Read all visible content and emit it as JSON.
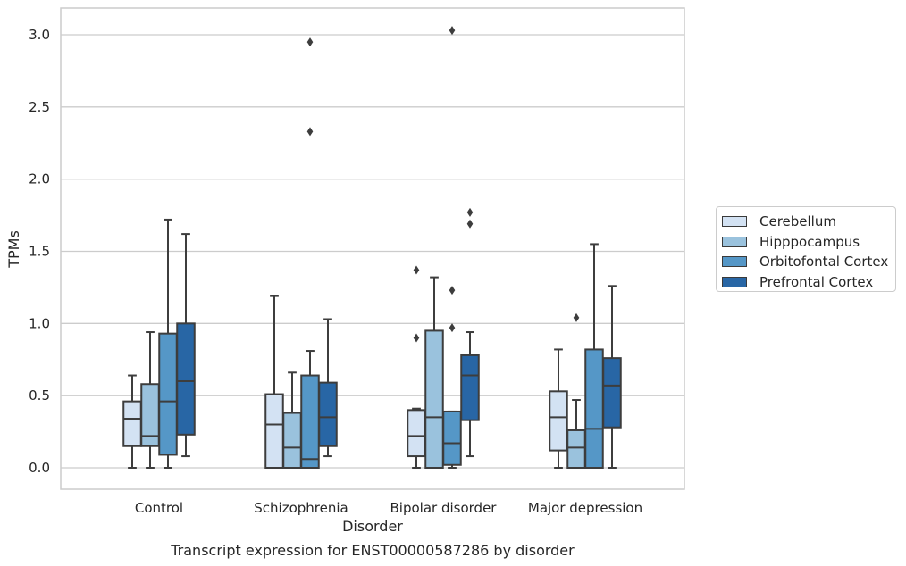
{
  "chart_data": {
    "type": "box",
    "caption": "Transcript expression for ENST00000587286 by disorder",
    "xlabel": "Disorder",
    "ylabel": "TPMs",
    "ylim": [
      -0.15,
      3.2
    ],
    "yticks": [
      "0.0",
      "0.5",
      "1.0",
      "1.5",
      "2.0",
      "2.5",
      "3.0"
    ],
    "grid": "horizontal",
    "legend_position": "right",
    "categories": [
      "Control",
      "Schizophrenia",
      "Bipolar disorder",
      "Major depression"
    ],
    "series": [
      {
        "name": "Cerebellum",
        "color": "#d3e2f3",
        "boxes": [
          {
            "whislo": 0.0,
            "q1": 0.15,
            "med": 0.34,
            "q3": 0.46,
            "whishi": 0.64,
            "fliers": []
          },
          {
            "whislo": 0.0,
            "q1": 0.0,
            "med": 0.3,
            "q3": 0.51,
            "whishi": 1.19,
            "fliers": []
          },
          {
            "whislo": 0.0,
            "q1": 0.08,
            "med": 0.22,
            "q3": 0.4,
            "whishi": 0.41,
            "fliers": [
              0.9,
              1.37
            ]
          },
          {
            "whislo": 0.0,
            "q1": 0.12,
            "med": 0.35,
            "q3": 0.53,
            "whishi": 0.82,
            "fliers": []
          }
        ]
      },
      {
        "name": "Hipppocampus",
        "color": "#9ac2dd",
        "boxes": [
          {
            "whislo": 0.0,
            "q1": 0.15,
            "med": 0.22,
            "q3": 0.58,
            "whishi": 0.94,
            "fliers": []
          },
          {
            "whislo": 0.0,
            "q1": 0.0,
            "med": 0.14,
            "q3": 0.38,
            "whishi": 0.66,
            "fliers": []
          },
          {
            "whislo": 0.0,
            "q1": 0.0,
            "med": 0.35,
            "q3": 0.95,
            "whishi": 1.32,
            "fliers": []
          },
          {
            "whislo": 0.0,
            "q1": 0.0,
            "med": 0.14,
            "q3": 0.26,
            "whishi": 0.47,
            "fliers": [
              1.04
            ]
          }
        ]
      },
      {
        "name": "Orbitofontal Cortex",
        "color": "#5597c7",
        "boxes": [
          {
            "whislo": 0.0,
            "q1": 0.09,
            "med": 0.46,
            "q3": 0.93,
            "whishi": 1.72,
            "fliers": []
          },
          {
            "whislo": 0.0,
            "q1": 0.0,
            "med": 0.06,
            "q3": 0.64,
            "whishi": 0.81,
            "fliers": [
              2.33,
              2.95
            ]
          },
          {
            "whislo": 0.0,
            "q1": 0.02,
            "med": 0.17,
            "q3": 0.39,
            "whishi": 0.39,
            "fliers": [
              0.97,
              1.23,
              3.03
            ]
          },
          {
            "whislo": 0.0,
            "q1": 0.0,
            "med": 0.27,
            "q3": 0.82,
            "whishi": 1.55,
            "fliers": []
          }
        ]
      },
      {
        "name": "Prefrontal Cortex",
        "color": "#2866a5",
        "boxes": [
          {
            "whislo": 0.08,
            "q1": 0.23,
            "med": 0.6,
            "q3": 1.0,
            "whishi": 1.62,
            "fliers": []
          },
          {
            "whislo": 0.08,
            "q1": 0.15,
            "med": 0.35,
            "q3": 0.59,
            "whishi": 1.03,
            "fliers": []
          },
          {
            "whislo": 0.08,
            "q1": 0.33,
            "med": 0.64,
            "q3": 0.78,
            "whishi": 0.94,
            "fliers": [
              1.69,
              1.77
            ]
          },
          {
            "whislo": 0.0,
            "q1": 0.28,
            "med": 0.57,
            "q3": 0.76,
            "whishi": 1.26,
            "fliers": []
          }
        ]
      }
    ]
  }
}
